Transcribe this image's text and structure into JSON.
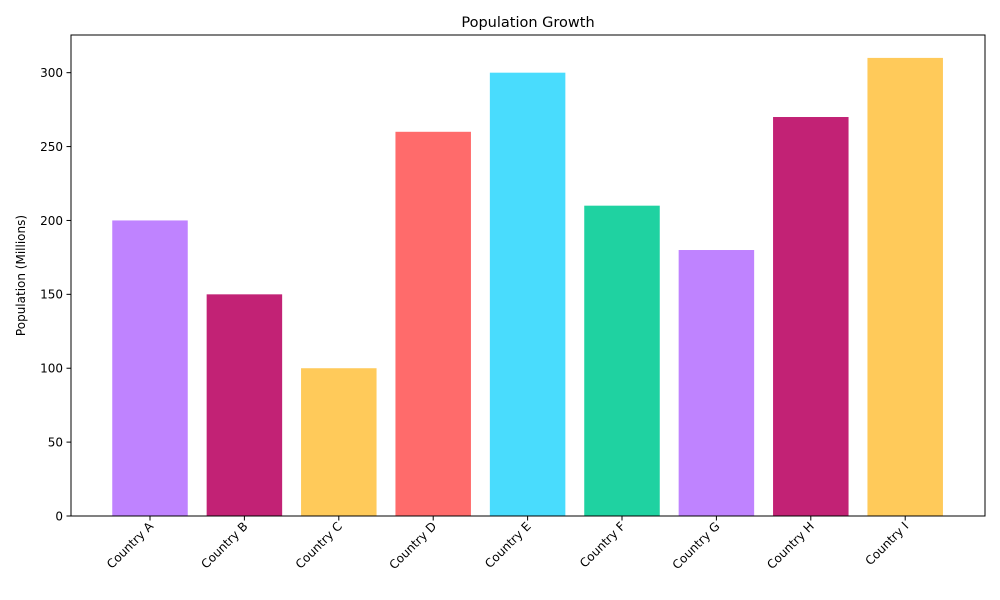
{
  "chart_data": {
    "type": "bar",
    "title": "Population Growth",
    "xlabel": "",
    "ylabel": "Population (Millions)",
    "categories": [
      "Country A",
      "Country B",
      "Country C",
      "Country D",
      "Country E",
      "Country F",
      "Country G",
      "Country H",
      "Country I"
    ],
    "values": [
      200,
      150,
      100,
      260,
      300,
      210,
      180,
      270,
      310
    ],
    "colors": [
      "#bf83ff",
      "#c22275",
      "#ffca5a",
      "#ff6b6b",
      "#49dcfd",
      "#1fd2a1",
      "#bf83ff",
      "#c22275",
      "#ffca5a"
    ],
    "ylim": [
      0,
      325.5
    ],
    "yticks": [
      0,
      50,
      100,
      150,
      200,
      250,
      300
    ],
    "grid": false,
    "legend": "none"
  }
}
